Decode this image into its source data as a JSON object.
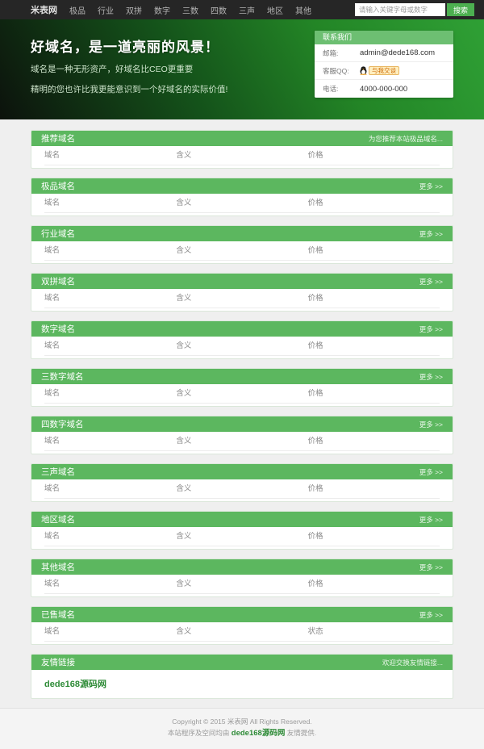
{
  "nav": {
    "items": [
      {
        "label": "米表网",
        "brand": true
      },
      {
        "label": "极品"
      },
      {
        "label": "行业"
      },
      {
        "label": "双拼"
      },
      {
        "label": "数字"
      },
      {
        "label": "三数"
      },
      {
        "label": "四数"
      },
      {
        "label": "三声"
      },
      {
        "label": "地区"
      },
      {
        "label": "其他"
      }
    ],
    "search": {
      "placeholder": "请输入关键字母或数字",
      "button_label": "搜索"
    }
  },
  "hero": {
    "title": "好域名，是一道亮丽的风景！",
    "subtitle1": "域名是一种无形资产，好域名比CEO更重要",
    "subtitle2": "精明的您也许比我更能意识到一个好域名的实际价值!"
  },
  "contact": {
    "title": "联系我们",
    "rows": [
      {
        "label": "邮箱:",
        "value": "admin@dede168.com",
        "type": "text"
      },
      {
        "label": "客服QQ:",
        "value": "与我交谈",
        "type": "qq"
      },
      {
        "label": "电话:",
        "value": "4000-000-000",
        "type": "text"
      }
    ]
  },
  "sections": [
    {
      "title": "推荐域名",
      "more": "为您推荐本站极品域名...",
      "columns": [
        "域名",
        "含义",
        "价格"
      ]
    },
    {
      "title": "极品域名",
      "more": "更多 >>",
      "columns": [
        "域名",
        "含义",
        "价格"
      ]
    },
    {
      "title": "行业域名",
      "more": "更多 >>",
      "columns": [
        "域名",
        "含义",
        "价格"
      ]
    },
    {
      "title": "双拼域名",
      "more": "更多 >>",
      "columns": [
        "域名",
        "含义",
        "价格"
      ]
    },
    {
      "title": "数字域名",
      "more": "更多 >>",
      "columns": [
        "域名",
        "含义",
        "价格"
      ]
    },
    {
      "title": "三数字域名",
      "more": "更多 >>",
      "columns": [
        "域名",
        "含义",
        "价格"
      ]
    },
    {
      "title": "四数字域名",
      "more": "更多 >>",
      "columns": [
        "域名",
        "含义",
        "价格"
      ]
    },
    {
      "title": "三声域名",
      "more": "更多 >>",
      "columns": [
        "域名",
        "含义",
        "价格"
      ]
    },
    {
      "title": "地区域名",
      "more": "更多 >>",
      "columns": [
        "域名",
        "含义",
        "价格"
      ]
    },
    {
      "title": "其他域名",
      "more": "更多 >>",
      "columns": [
        "域名",
        "含义",
        "价格"
      ]
    },
    {
      "title": "已售域名",
      "more": "更多 >>",
      "columns": [
        "域名",
        "含义",
        "状态"
      ]
    }
  ],
  "links": {
    "title": "友情链接",
    "more": "欢迎交换友情链接...",
    "items": [
      "dede168源码网"
    ]
  },
  "footer": {
    "line1": "Copyright © 2015 米表网 All Rights Reserved.",
    "line2_prefix": "本站程序及空间均由 ",
    "line2_link": "dede168源码网",
    "line2_suffix": " 友情提供."
  },
  "colors": {
    "nav_bg": "#262626",
    "accent_green": "#5cb75f",
    "button_green": "#4caf50",
    "hero_gradient_dark": "#0c120c",
    "hero_gradient_bright": "#2fa035",
    "contact_head_green": "#6dbf72",
    "link_green": "#2e8b37",
    "page_bg": "#efefef"
  }
}
